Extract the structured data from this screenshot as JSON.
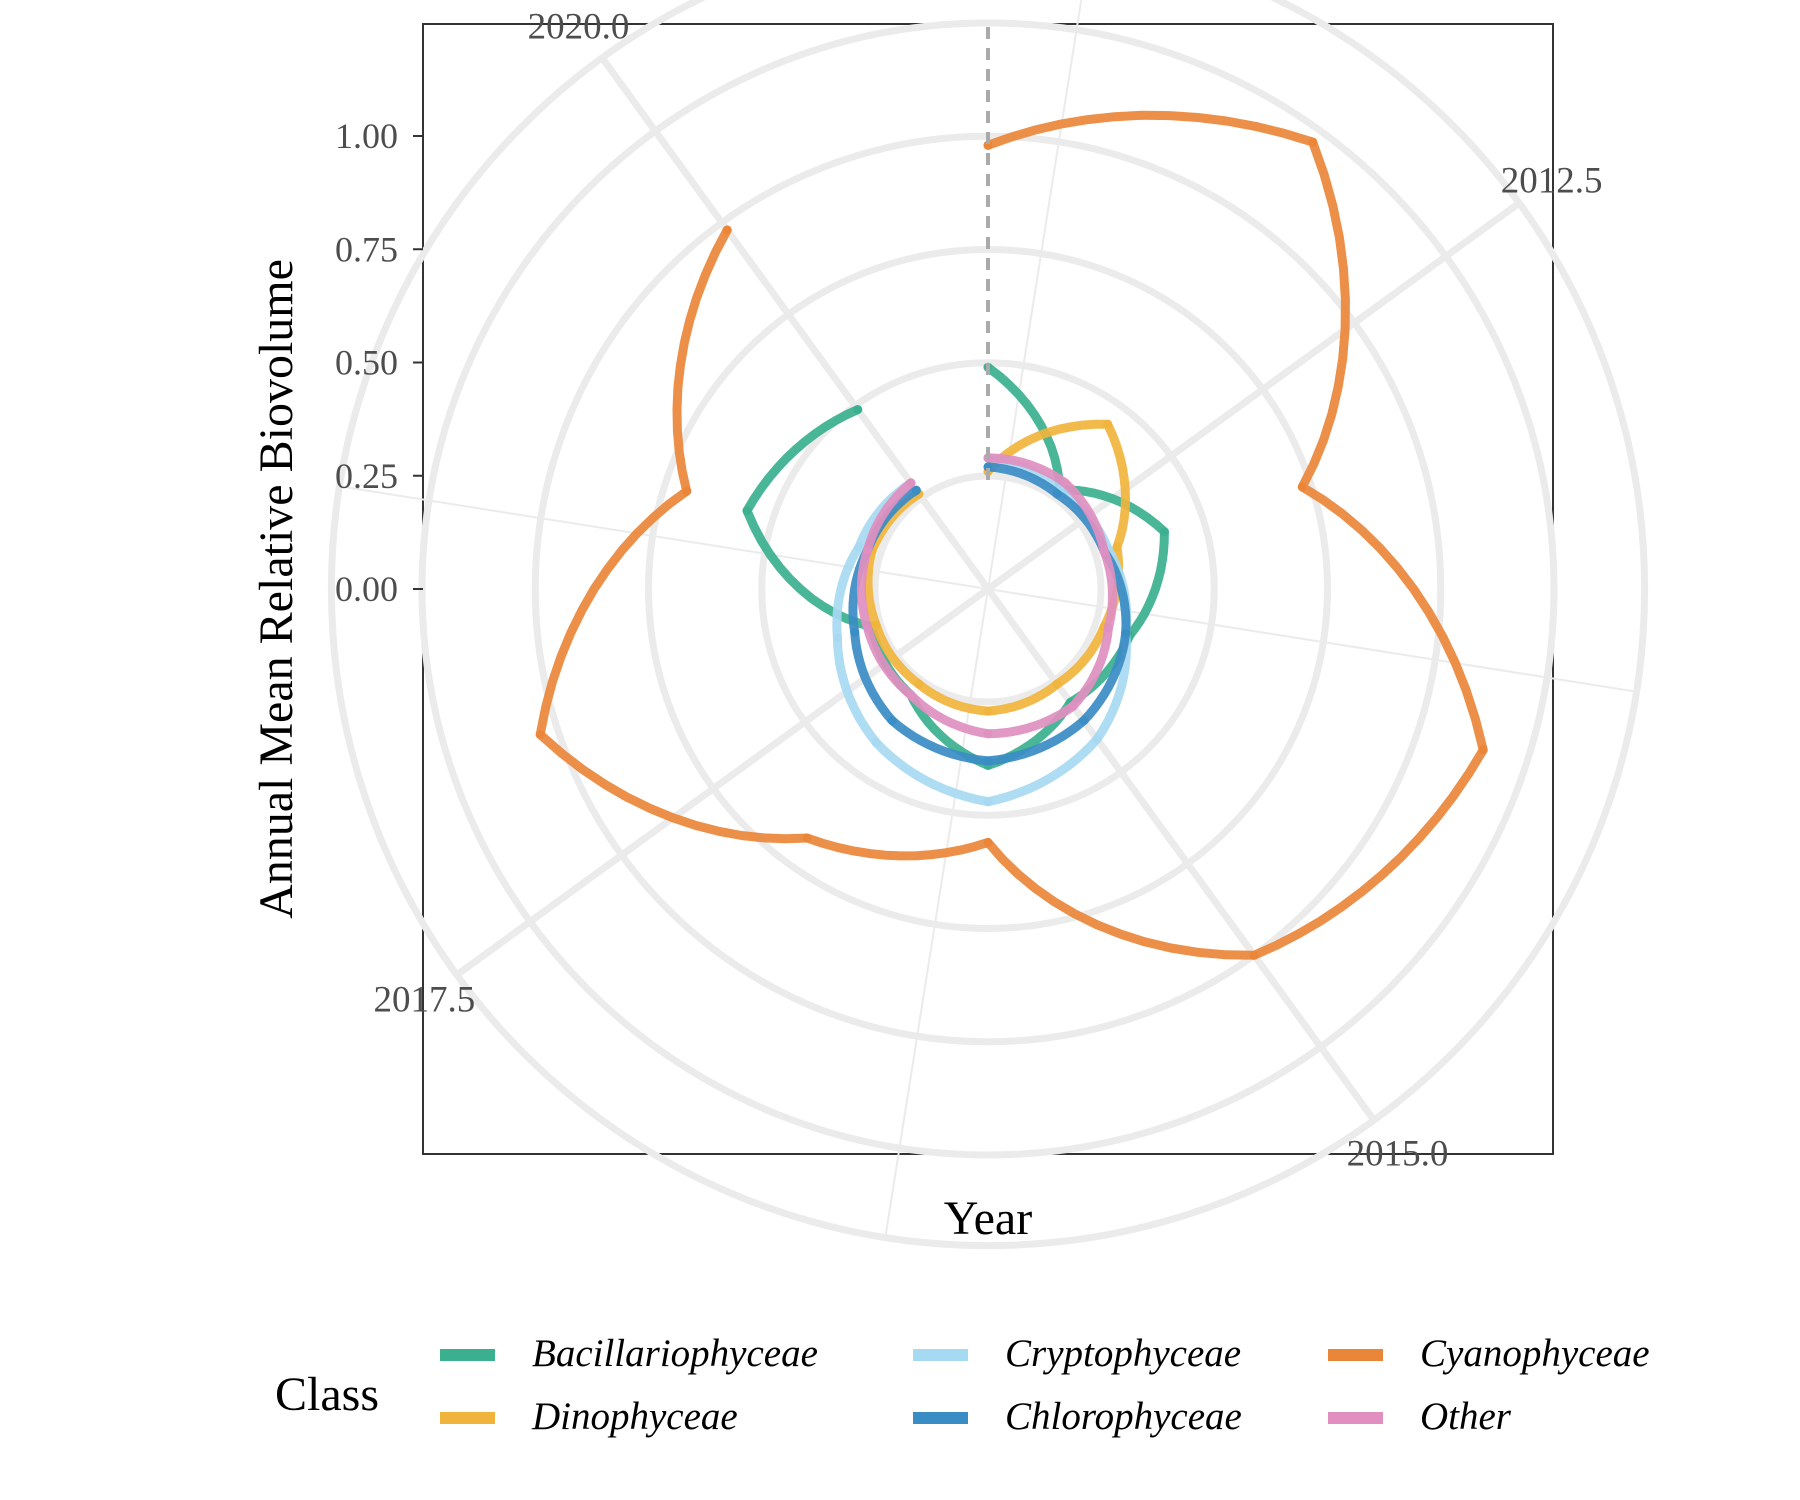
{
  "chart_data": {
    "type": "line",
    "coordinate_system": "polar",
    "xlabel": "Year",
    "ylabel": "Annual Mean Relative Biovolume",
    "x": [
      2011,
      2012,
      2013,
      2014,
      2015,
      2016,
      2017,
      2018,
      2019,
      2020
    ],
    "xlim": [
      2011,
      2020
    ],
    "x_ticks": [
      "2012.5",
      "2015.0",
      "2017.5",
      "2020.0"
    ],
    "ylim": [
      0,
      1.0
    ],
    "y_ticks": [
      "0.00",
      "0.25",
      "0.50",
      "0.75",
      "1.00"
    ],
    "grid": true,
    "reference_line": {
      "style": "dashed",
      "color": "#aaaaaa"
    },
    "series": [
      {
        "name": "Bacillariophyceae",
        "color": "#3bb08f",
        "values": [
          0.24,
          0.02,
          0.16,
          0.08,
          0.06,
          0.14,
          0.04,
          0.02,
          0.31,
          0.24
        ]
      },
      {
        "name": "Dinophyceae",
        "color": "#f0b43c",
        "values": [
          0.01,
          0.2,
          0.05,
          0.02,
          0.01,
          0.02,
          0.01,
          0.01,
          0.02,
          0.01
        ]
      },
      {
        "name": "Cryptophyceae",
        "color": "#a6d9f2",
        "values": [
          0.04,
          0.02,
          0.03,
          0.07,
          0.16,
          0.22,
          0.17,
          0.1,
          0.05,
          0.04
        ]
      },
      {
        "name": "Chlorophyceae",
        "color": "#3a8cc4",
        "values": [
          0.02,
          0.01,
          0.02,
          0.07,
          0.11,
          0.13,
          0.11,
          0.06,
          0.03,
          0.02
        ]
      },
      {
        "name": "Other",
        "color": "#e08fc0",
        "values": [
          0.04,
          0.04,
          0.02,
          0.03,
          0.07,
          0.07,
          0.04,
          0.03,
          0.03,
          0.04
        ]
      },
      {
        "name": "Cyanophyceae",
        "color": "#ea8638",
        "values": [
          0.73,
          0.97,
          0.48,
          0.9,
          0.75,
          0.31,
          0.43,
          0.79,
          0.45,
          0.73
        ]
      }
    ]
  },
  "legend": {
    "title": "Class",
    "entries": [
      {
        "label": "Bacillariophyceae",
        "color": "#3bb08f"
      },
      {
        "label": "Cryptophyceae",
        "color": "#a6d9f2"
      },
      {
        "label": "Cyanophyceae",
        "color": "#ea8638"
      },
      {
        "label": "Dinophyceae",
        "color": "#f0b43c"
      },
      {
        "label": "Chlorophyceae",
        "color": "#3a8cc4"
      },
      {
        "label": "Other",
        "color": "#e08fc0"
      }
    ]
  }
}
